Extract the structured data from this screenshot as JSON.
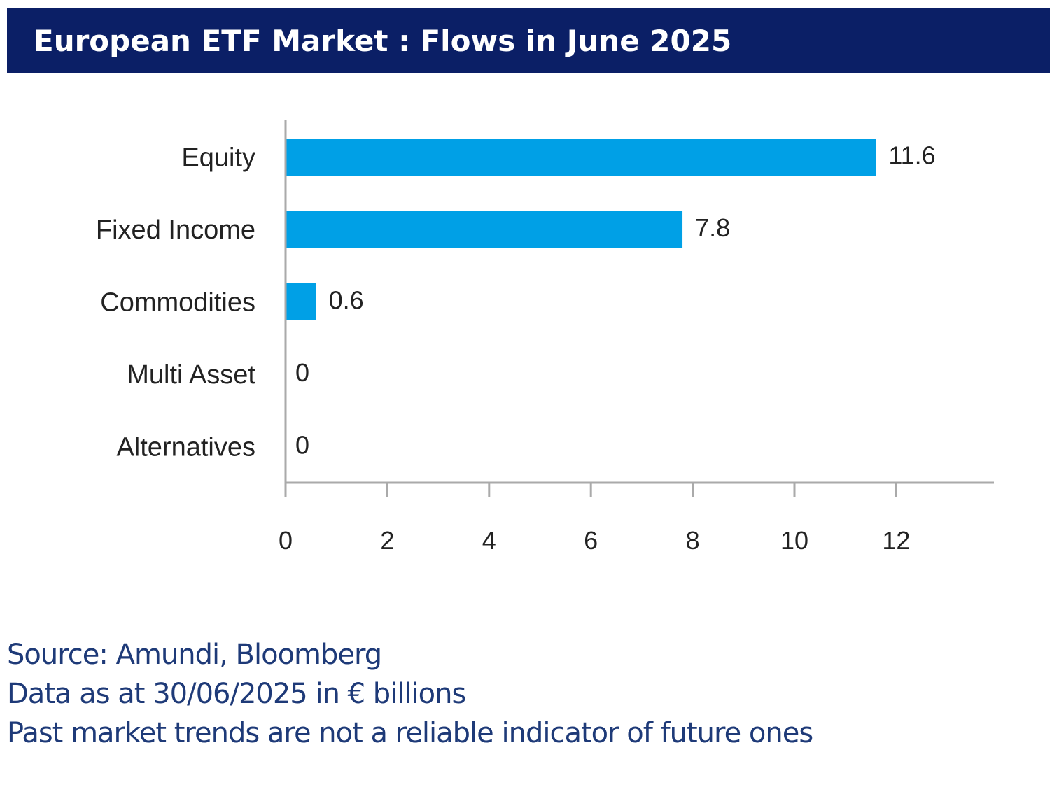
{
  "header": {
    "title": "European ETF Market : Flows in June 2025"
  },
  "chart_data": {
    "type": "bar",
    "orientation": "horizontal",
    "title": "European ETF Market : Flows in June 2025",
    "categories": [
      "Equity",
      "Fixed Income",
      "Commodities",
      "Multi Asset",
      "Alternatives"
    ],
    "values": [
      11.6,
      7.8,
      0.6,
      0,
      0
    ],
    "value_labels": [
      "11.6",
      "7.8",
      "0.6",
      "0",
      "0"
    ],
    "xlim": [
      0,
      14
    ],
    "xticks": [
      0,
      2,
      4,
      6,
      8,
      10,
      12
    ],
    "xlabel": "",
    "ylabel": "",
    "grid": false,
    "bar_color": "#00a0e6",
    "axis_color": "#aaaaaa"
  },
  "footer": {
    "lines": [
      "Source: Amundi, Bloomberg",
      "Data as at 30/06/2025 in € billions",
      "Past market trends are not a reliable indicator of future ones"
    ]
  },
  "colors": {
    "title_bg": "#0b1f66",
    "title_text": "#ffffff",
    "footer_text": "#1e3a78"
  }
}
